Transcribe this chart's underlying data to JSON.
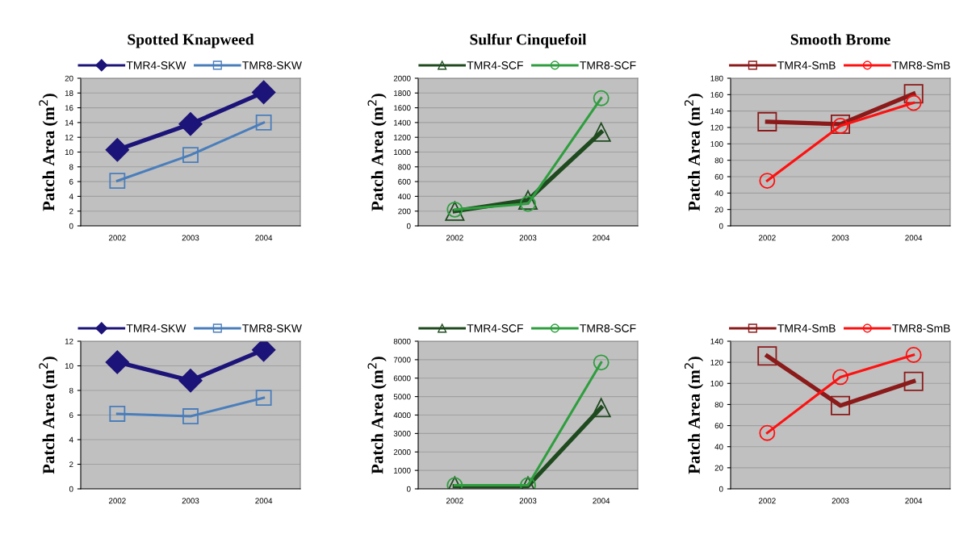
{
  "chart_data": [
    {
      "type": "line",
      "title": "Spotted Knapweed",
      "ylabel": "Patch Area (m$^{2}$)",
      "categories": [
        "2002",
        "2003",
        "2004"
      ],
      "ylim": [
        0,
        20
      ],
      "yticks": [
        0,
        2,
        4,
        6,
        8,
        10,
        12,
        14,
        16,
        18,
        20
      ],
      "grid": "y",
      "legend": "top",
      "series": [
        {
          "name": "TMR4-SKW",
          "color": "#1c1478",
          "marker": "diamond",
          "values": [
            10.3,
            13.8,
            18.1
          ]
        },
        {
          "name": "TMR8-SKW",
          "color": "#4a7ebb",
          "marker": "square",
          "values": [
            6.1,
            9.6,
            14.0
          ]
        }
      ]
    },
    {
      "type": "line",
      "title": "Sulfur Cinquefoil",
      "ylabel": "Patch Area (m$^{2}$)",
      "categories": [
        "2002",
        "2003",
        "2004"
      ],
      "ylim": [
        0,
        2000
      ],
      "yticks": [
        0,
        200,
        400,
        600,
        800,
        1000,
        1200,
        1400,
        1600,
        1800,
        2000
      ],
      "grid": "y",
      "legend": "top",
      "series": [
        {
          "name": "TMR4-SCF",
          "color": "#1f4a1f",
          "marker": "triangle",
          "values": [
            200,
            350,
            1270
          ]
        },
        {
          "name": "TMR8-SCF",
          "color": "#2e9e3e",
          "marker": "circle",
          "values": [
            220,
            300,
            1730
          ]
        }
      ]
    },
    {
      "type": "line",
      "title": "Smooth Brome",
      "ylabel": "Patch Area (m$^{2}$)",
      "categories": [
        "2002",
        "2003",
        "2004"
      ],
      "ylim": [
        0,
        180
      ],
      "yticks": [
        0,
        20,
        40,
        60,
        80,
        100,
        120,
        140,
        160,
        180
      ],
      "grid": "y",
      "legend": "top",
      "series": [
        {
          "name": "TMR4-SmB",
          "color": "#8b1a1a",
          "marker": "square",
          "values": [
            127,
            124,
            161
          ]
        },
        {
          "name": "TMR8-SmB",
          "color": "#ff1010",
          "marker": "circle",
          "values": [
            55,
            122,
            150
          ]
        }
      ]
    },
    {
      "type": "line",
      "ylabel": "Patch Area (m$^{2}$)",
      "categories": [
        "2002",
        "2003",
        "2004"
      ],
      "ylim": [
        0,
        12
      ],
      "yticks": [
        0,
        2,
        4,
        6,
        8,
        10,
        12
      ],
      "grid": "y",
      "legend": "top",
      "series": [
        {
          "name": "TMR4-SKW",
          "color": "#1c1478",
          "marker": "diamond",
          "values": [
            10.3,
            8.8,
            11.3
          ]
        },
        {
          "name": "TMR8-SKW",
          "color": "#4a7ebb",
          "marker": "square",
          "values": [
            6.1,
            5.9,
            7.4
          ]
        }
      ]
    },
    {
      "type": "line",
      "ylabel": "Patch Area (m$^{2}$)",
      "categories": [
        "2002",
        "2003",
        "2004"
      ],
      "ylim": [
        0,
        8000
      ],
      "yticks": [
        0,
        1000,
        2000,
        3000,
        4000,
        5000,
        6000,
        7000,
        8000
      ],
      "grid": "y",
      "legend": "top",
      "series": [
        {
          "name": "TMR4-SCF",
          "color": "#1f4a1f",
          "marker": "triangle",
          "values": [
            150,
            150,
            4400
          ]
        },
        {
          "name": "TMR8-SCF",
          "color": "#2e9e3e",
          "marker": "circle",
          "values": [
            200,
            200,
            6850
          ]
        }
      ]
    },
    {
      "type": "line",
      "ylabel": "Patch Area (m$^{2}$)",
      "categories": [
        "2002",
        "2003",
        "2004"
      ],
      "ylim": [
        0,
        140
      ],
      "yticks": [
        0,
        20,
        40,
        60,
        80,
        100,
        120,
        140
      ],
      "grid": "y",
      "legend": "top",
      "series": [
        {
          "name": "TMR4-SmB",
          "color": "#8b1a1a",
          "marker": "square",
          "values": [
            126,
            79,
            102
          ]
        },
        {
          "name": "TMR8-SmB",
          "color": "#ff1010",
          "marker": "circle",
          "values": [
            53,
            106,
            127
          ]
        }
      ]
    }
  ]
}
